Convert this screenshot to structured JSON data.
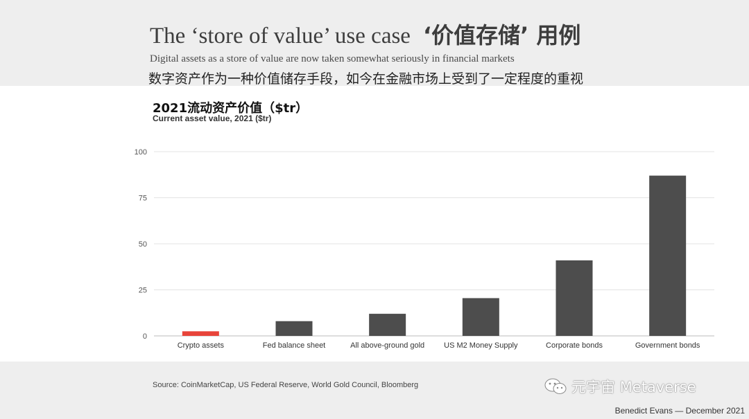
{
  "slide": {
    "title_en": "The ‘store of value’ use case",
    "title_zh": "‘价值存储’ 用例",
    "subtitle_en": "Digital assets as a store of value are now taken somewhat seriously in financial markets",
    "subtitle_zh": "数字资产作为一种价值储存手段，如今在金融市场上受到了一定程度的重视",
    "source": "Source: CoinMarketCap, US Federal Reserve, World Gold Council, Bloomberg",
    "watermark": "元宇宙 Metaverse",
    "credit": "Benedict Evans — December 2021"
  },
  "chart_data": {
    "type": "bar",
    "title": "2021流动资产价值（$tr）",
    "subtitle": "Current asset value, 2021 ($tr)",
    "categories": [
      "Crypto assets",
      "Fed balance sheet",
      "All above-ground gold",
      "US M2 Money Supply",
      "Corporate bonds",
      "Government bonds"
    ],
    "values": [
      2.5,
      8,
      12,
      20.5,
      41,
      87
    ],
    "ylim": [
      0,
      100
    ],
    "yticks": [
      0,
      25,
      50,
      75,
      100
    ],
    "grid": true,
    "bar_colors": [
      "#e8443a",
      "#4d4d4d",
      "#4d4d4d",
      "#4d4d4d",
      "#4d4d4d",
      "#4d4d4d"
    ]
  }
}
